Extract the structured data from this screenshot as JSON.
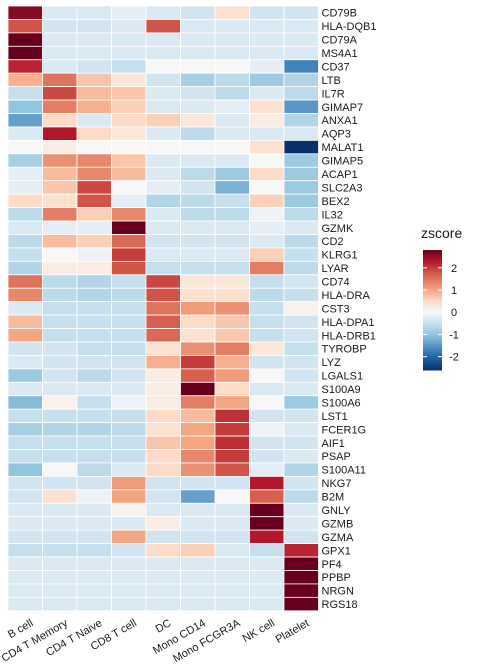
{
  "chart_data": {
    "type": "heatmap",
    "title": "",
    "xlabel": "",
    "ylabel": "",
    "columns": [
      "B cell",
      "CD4 T Memory",
      "CD4 T Naive",
      "CD8 T cell",
      "DC",
      "Mono CD14",
      "Mono FCGR3A",
      "NK cell",
      "Platelet"
    ],
    "rows": [
      "CD79B",
      "HLA-DQB1",
      "CD79A",
      "MS4A1",
      "CD37",
      "LTB",
      "IL7R",
      "GIMAP7",
      "ANXA1",
      "AQP3",
      "MALAT1",
      "GIMAP5",
      "ACAP1",
      "SLC2A3",
      "BEX2",
      "IL32",
      "GZMK",
      "CD2",
      "KLRG1",
      "LYAR",
      "CD74",
      "HLA-DRA",
      "CST3",
      "HLA-DPA1",
      "HLA-DRB1",
      "TYROBP",
      "LYZ",
      "LGALS1",
      "S100A9",
      "S100A6",
      "LST1",
      "FCER1G",
      "AIF1",
      "PSAP",
      "S100A11",
      "NKG7",
      "B2M",
      "GNLY",
      "GZMB",
      "GZMA",
      "GPX1",
      "PF4",
      "PPBP",
      "NRGN",
      "RGS18"
    ],
    "values": [
      [
        2.6,
        -0.3,
        -0.3,
        -0.2,
        -0.3,
        -0.4,
        0.4,
        -0.4,
        -0.4
      ],
      [
        1.8,
        -0.4,
        -0.4,
        -0.3,
        1.8,
        -0.3,
        -0.3,
        -0.3,
        -0.3
      ],
      [
        2.8,
        -0.3,
        -0.3,
        -0.3,
        -0.3,
        -0.3,
        -0.3,
        -0.3,
        -0.3
      ],
      [
        2.8,
        -0.3,
        -0.3,
        -0.3,
        -0.3,
        -0.3,
        -0.3,
        -0.3,
        -0.3
      ],
      [
        2.2,
        -0.3,
        -0.4,
        -0.5,
        0.0,
        0.0,
        0.0,
        -0.2,
        -1.7
      ],
      [
        0.9,
        1.5,
        0.7,
        0.3,
        -0.4,
        -0.8,
        -0.6,
        -0.9,
        -0.7
      ],
      [
        -0.5,
        1.9,
        0.8,
        0.7,
        -0.3,
        -0.4,
        -0.6,
        -0.3,
        -0.6
      ],
      [
        -1.0,
        1.4,
        0.9,
        0.6,
        -0.3,
        -0.3,
        -0.2,
        0.4,
        -1.5
      ],
      [
        -1.4,
        0.5,
        -0.3,
        0.5,
        0.6,
        0.3,
        -0.3,
        0.2,
        -0.7
      ],
      [
        -0.3,
        2.3,
        0.5,
        0.3,
        -0.3,
        -0.6,
        -0.3,
        -0.3,
        -0.3
      ],
      [
        0.0,
        0.2,
        0.0,
        0.0,
        0.0,
        0.0,
        0.0,
        0.4,
        -2.6
      ],
      [
        -0.8,
        1.2,
        1.3,
        0.7,
        -0.3,
        -0.3,
        -0.3,
        0.0,
        -0.9
      ],
      [
        -0.2,
        0.8,
        1.3,
        0.8,
        -0.3,
        -0.6,
        -0.9,
        0.5,
        -0.9
      ],
      [
        -0.2,
        0.7,
        1.9,
        0.0,
        -0.2,
        -0.4,
        -1.2,
        0.0,
        -0.9
      ],
      [
        0.5,
        0.4,
        1.8,
        -0.2,
        -0.7,
        -0.6,
        -0.5,
        0.6,
        -0.9
      ],
      [
        -0.6,
        1.4,
        0.6,
        1.3,
        -0.3,
        -0.6,
        -0.6,
        -0.1,
        -0.6
      ],
      [
        -0.3,
        -0.2,
        -0.2,
        2.9,
        -0.3,
        -0.3,
        -0.3,
        -0.2,
        -0.3
      ],
      [
        -0.6,
        0.8,
        0.6,
        1.6,
        -0.4,
        -0.4,
        -0.4,
        -0.3,
        -0.6
      ],
      [
        -0.5,
        0.0,
        -0.1,
        2.0,
        -0.3,
        -0.3,
        -0.3,
        0.6,
        -0.5
      ],
      [
        -0.7,
        0.2,
        0.2,
        1.8,
        -0.5,
        -0.5,
        -0.5,
        1.4,
        -0.6
      ],
      [
        1.5,
        -0.6,
        -0.7,
        -0.5,
        1.9,
        0.3,
        0.3,
        -0.5,
        -0.4
      ],
      [
        1.3,
        -0.6,
        -0.7,
        -0.6,
        1.8,
        0.4,
        0.4,
        -0.6,
        -0.5
      ],
      [
        -0.3,
        -0.5,
        -0.5,
        -0.5,
        1.5,
        1.1,
        1.2,
        -0.5,
        0.1
      ],
      [
        0.8,
        -0.5,
        -0.5,
        -0.5,
        1.7,
        0.5,
        0.7,
        -0.5,
        -0.4
      ],
      [
        1.0,
        -0.5,
        -0.5,
        -0.5,
        1.6,
        0.4,
        0.7,
        -0.5,
        -0.4
      ],
      [
        -0.4,
        -0.4,
        -0.5,
        -0.5,
        0.4,
        1.2,
        1.4,
        0.3,
        -0.5
      ],
      [
        -0.3,
        -0.4,
        -0.4,
        -0.4,
        0.9,
        2.0,
        0.9,
        -0.4,
        -0.4
      ],
      [
        -0.9,
        -0.4,
        -0.6,
        -0.4,
        0.2,
        1.7,
        1.1,
        0.0,
        -0.4
      ],
      [
        -0.3,
        -0.3,
        -0.3,
        -0.3,
        0.2,
        2.8,
        0.5,
        -0.3,
        -0.3
      ],
      [
        -1.1,
        0.1,
        -0.5,
        -0.1,
        0.2,
        1.4,
        1.0,
        0.0,
        -0.9
      ],
      [
        -0.5,
        -0.5,
        -0.5,
        -0.5,
        0.5,
        0.8,
        2.1,
        -0.4,
        -0.4
      ],
      [
        -0.8,
        -0.7,
        -0.7,
        -0.6,
        0.4,
        1.0,
        2.0,
        -0.1,
        -0.3
      ],
      [
        -0.5,
        -0.5,
        -0.5,
        -0.5,
        0.7,
        1.0,
        2.1,
        -0.4,
        -0.4
      ],
      [
        -0.5,
        -0.5,
        -0.5,
        -0.5,
        0.5,
        1.3,
        2.0,
        -0.4,
        -0.3
      ],
      [
        -1.0,
        0.0,
        -0.6,
        -0.3,
        0.5,
        1.2,
        1.8,
        -0.2,
        -0.7
      ],
      [
        -0.4,
        -0.4,
        -0.4,
        1.1,
        -0.4,
        -0.4,
        -0.4,
        2.3,
        -0.4
      ],
      [
        -0.4,
        0.4,
        -0.1,
        1.0,
        -0.4,
        -1.4,
        0.0,
        1.7,
        -0.6
      ],
      [
        -0.3,
        -0.3,
        -0.3,
        0.1,
        -0.3,
        -0.3,
        -0.3,
        2.8,
        -0.3
      ],
      [
        -0.3,
        -0.3,
        -0.3,
        -0.3,
        0.2,
        -0.3,
        -0.3,
        2.8,
        -0.3
      ],
      [
        -0.4,
        -0.4,
        -0.4,
        1.0,
        -0.4,
        -0.4,
        -0.4,
        2.3,
        -0.4
      ],
      [
        -0.5,
        -0.5,
        -0.5,
        -0.4,
        0.5,
        0.6,
        -0.3,
        -0.5,
        2.2
      ],
      [
        -0.3,
        -0.3,
        -0.3,
        -0.3,
        -0.3,
        -0.3,
        -0.3,
        -0.3,
        2.8
      ],
      [
        -0.3,
        -0.3,
        -0.3,
        -0.3,
        -0.3,
        -0.3,
        -0.3,
        -0.3,
        2.8
      ],
      [
        -0.3,
        -0.3,
        -0.3,
        -0.3,
        -0.3,
        -0.3,
        -0.3,
        -0.3,
        2.8
      ],
      [
        -0.3,
        -0.3,
        -0.3,
        -0.3,
        -0.3,
        -0.3,
        -0.3,
        -0.3,
        2.8
      ]
    ],
    "legend": {
      "title": "zscore",
      "ticks": [
        2,
        1,
        0,
        -1,
        -2
      ],
      "tick_labels": [
        "2",
        "1",
        "0",
        "-1",
        "-2"
      ],
      "range": [
        -2.6,
        2.8
      ],
      "placement": "right"
    },
    "colors": {
      "low": "#08306b",
      "mid": "#f7f7f7",
      "high": "#67001f",
      "cell_border": "#ffffff"
    },
    "grid": false
  }
}
